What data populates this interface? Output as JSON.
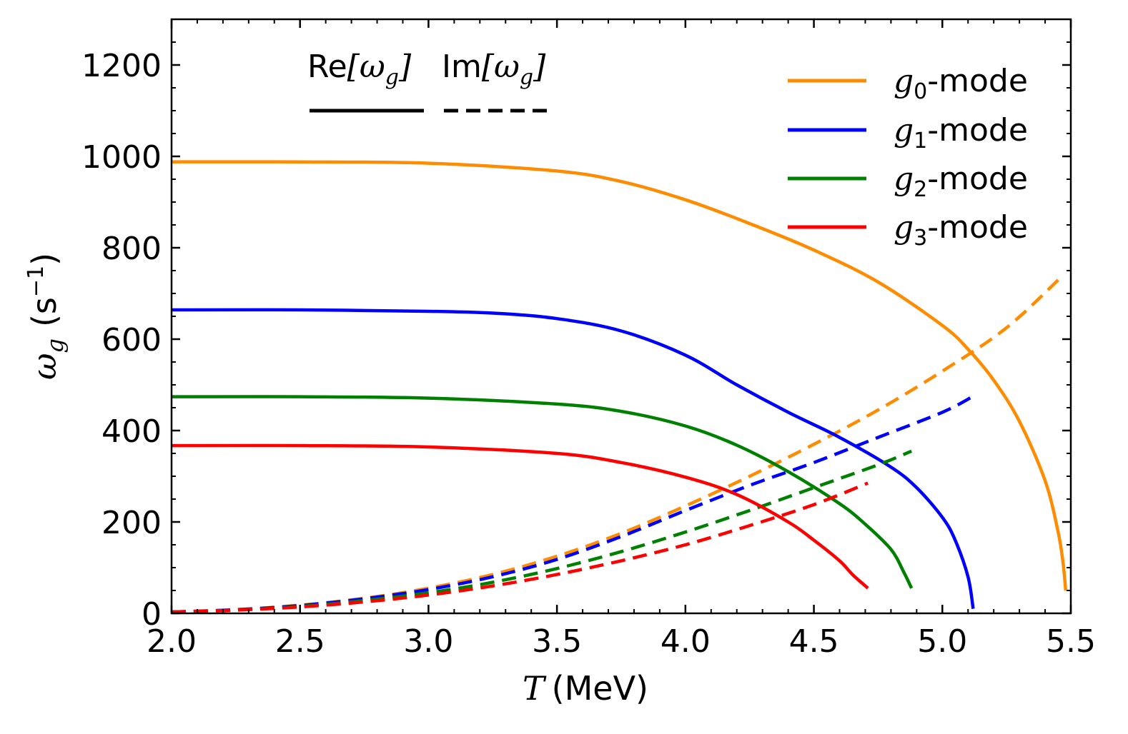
{
  "chart_data": {
    "type": "line",
    "title": "",
    "xlabel": {
      "symbol": "T",
      "unit": "(MeV)"
    },
    "ylabel": {
      "symbol": "ω",
      "subscript": "g",
      "unit_prefix": "(s",
      "unit_exponent": "−1",
      "unit_suffix": ")"
    },
    "xlim": [
      2.0,
      5.5
    ],
    "ylim": [
      0,
      1300
    ],
    "xticks": [
      2.0,
      2.5,
      3.0,
      3.5,
      4.0,
      4.5,
      5.0,
      5.5
    ],
    "xtick_labels": [
      "2.0",
      "2.5",
      "3.0",
      "3.5",
      "4.0",
      "4.5",
      "5.0",
      "5.5"
    ],
    "yticks": [
      0,
      200,
      400,
      600,
      800,
      1000,
      1200
    ],
    "ytick_labels": [
      "0",
      "200",
      "400",
      "600",
      "800",
      "1000",
      "1200"
    ],
    "grid": false,
    "legend_position": "top-right",
    "style_header": {
      "position": "top-left",
      "real": {
        "prefix": "Re",
        "symbol": "ω",
        "subscript": "g",
        "linestyle": "solid"
      },
      "imag": {
        "prefix": "Im",
        "symbol": "ω",
        "subscript": "g",
        "linestyle": "dashed"
      }
    },
    "series": [
      {
        "name": "g0-mode",
        "symbol": "g",
        "subscript": "0",
        "suffix": "-mode",
        "color": "#FF8C00",
        "real": {
          "x": [
            2.0,
            2.5,
            3.0,
            3.5,
            3.75,
            4.0,
            4.25,
            4.5,
            4.75,
            5.0,
            5.1,
            5.2,
            5.3,
            5.4,
            5.45,
            5.47,
            5.48
          ],
          "y": [
            988,
            988,
            985,
            968,
            945,
            905,
            853,
            795,
            725,
            630,
            578,
            510,
            420,
            290,
            180,
            110,
            50
          ]
        },
        "imag": {
          "x": [
            2.0,
            2.25,
            2.5,
            2.75,
            3.0,
            3.25,
            3.5,
            3.75,
            4.0,
            4.25,
            4.5,
            4.75,
            5.0,
            5.25,
            5.47
          ],
          "y": [
            3,
            8,
            18,
            33,
            55,
            85,
            125,
            175,
            235,
            300,
            370,
            445,
            530,
            625,
            740
          ]
        }
      },
      {
        "name": "g1-mode",
        "symbol": "g",
        "subscript": "1",
        "suffix": "-mode",
        "color": "#0000FF",
        "real": {
          "x": [
            2.0,
            2.5,
            3.0,
            3.25,
            3.5,
            3.75,
            4.0,
            4.2,
            4.4,
            4.6,
            4.8,
            4.9,
            5.0,
            5.05,
            5.1,
            5.12
          ],
          "y": [
            664,
            664,
            661,
            657,
            645,
            618,
            565,
            500,
            440,
            385,
            320,
            275,
            210,
            160,
            80,
            10
          ]
        },
        "imag": {
          "x": [
            2.0,
            2.25,
            2.5,
            2.75,
            3.0,
            3.25,
            3.5,
            3.75,
            4.0,
            4.25,
            4.5,
            4.75,
            5.0,
            5.12
          ],
          "y": [
            3,
            8,
            17,
            32,
            52,
            80,
            118,
            168,
            225,
            280,
            330,
            385,
            440,
            475
          ]
        }
      },
      {
        "name": "g2-mode",
        "symbol": "g",
        "subscript": "2",
        "suffix": "-mode",
        "color": "#008000",
        "real": {
          "x": [
            2.0,
            2.5,
            3.0,
            3.5,
            3.75,
            4.0,
            4.2,
            4.4,
            4.6,
            4.7,
            4.8,
            4.85,
            4.88
          ],
          "y": [
            474,
            474,
            471,
            458,
            442,
            410,
            368,
            310,
            240,
            195,
            140,
            90,
            55
          ]
        },
        "imag": {
          "x": [
            2.0,
            2.25,
            2.5,
            2.75,
            3.0,
            3.25,
            3.5,
            3.75,
            4.0,
            4.25,
            4.5,
            4.75,
            4.88
          ],
          "y": [
            3,
            7,
            15,
            28,
            45,
            68,
            98,
            135,
            178,
            225,
            275,
            325,
            355
          ]
        }
      },
      {
        "name": "g3-mode",
        "symbol": "g",
        "subscript": "3",
        "suffix": "-mode",
        "color": "#FF0000",
        "real": {
          "x": [
            2.0,
            2.5,
            3.0,
            3.5,
            3.75,
            4.0,
            4.2,
            4.4,
            4.5,
            4.6,
            4.65,
            4.7,
            4.71
          ],
          "y": [
            367,
            367,
            364,
            350,
            330,
            298,
            260,
            200,
            160,
            115,
            85,
            60,
            55
          ]
        },
        "imag": {
          "x": [
            2.0,
            2.25,
            2.5,
            2.75,
            3.0,
            3.25,
            3.5,
            3.75,
            4.0,
            4.25,
            4.5,
            4.71
          ],
          "y": [
            3,
            7,
            14,
            25,
            40,
            60,
            85,
            115,
            150,
            192,
            238,
            285
          ]
        }
      }
    ]
  }
}
